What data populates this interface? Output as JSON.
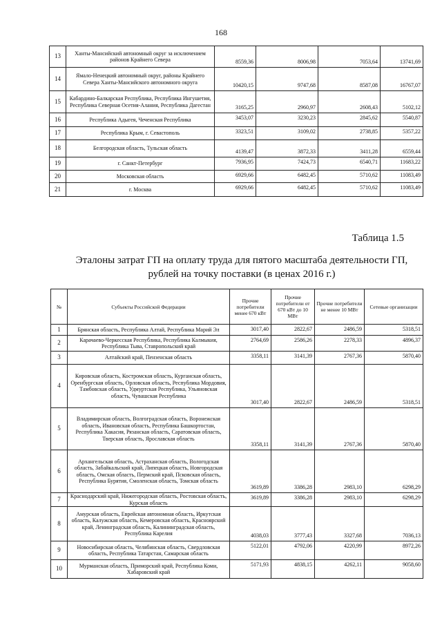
{
  "page_number": "168",
  "table1": {
    "rows": [
      {
        "n": "13",
        "name": "Ханты-Мансийский автономный округ за исключением районов Крайнего Севера",
        "v": [
          "8559,36",
          "8006,98",
          "7053,64",
          "13741,69"
        ]
      },
      {
        "n": "14",
        "name": "Ямало-Ненецкий автономный округ, районы Крайнего Севера Ханты-Мансийского автономного округа",
        "v": [
          "10420,15",
          "9747,68",
          "8587,08",
          "16767,07"
        ]
      },
      {
        "n": "15",
        "name": "Кабардино-Балкарская Республика, Республика Ингушетия, Республика Северная Осетия-Алания, Республика Дагестан",
        "v": [
          "3165,25",
          "2960,97",
          "2608,43",
          "5102,12"
        ]
      },
      {
        "n": "16",
        "name": "Республика Адыгея, Чеченская Республика",
        "v": [
          "3453,07",
          "3230,23",
          "2845,62",
          "5540,87"
        ]
      },
      {
        "n": "17",
        "name": "Республика Крым, г. Севастополь",
        "v": [
          "3323,51",
          "3109,02",
          "2738,85",
          "5357,22"
        ]
      },
      {
        "n": "18",
        "name": "Белгородская область, Тульская область",
        "v": [
          "4139,47",
          "3872,33",
          "3411,28",
          "6559,44"
        ]
      },
      {
        "n": "19",
        "name": "г. Санкт-Петербург",
        "v": [
          "7936,95",
          "7424,73",
          "6540,71",
          "11683,22"
        ]
      },
      {
        "n": "20",
        "name": "Московская область",
        "v": [
          "6929,66",
          "6482,45",
          "5710,62",
          "11083,49"
        ]
      },
      {
        "n": "21",
        "name": "г. Москва",
        "v": [
          "6929,66",
          "6482,45",
          "5710,62",
          "11083,49"
        ]
      }
    ]
  },
  "caption": "Таблица 1.5",
  "title_line1": "Эталоны затрат ГП на оплату труда для пятого масштаба деятельности ГП,",
  "title_line2": "рублей на точку поставки (в ценах 2016 г.)",
  "table2": {
    "headers": [
      "№",
      "Субъекты Российской Федерации",
      "Прочие потребители менее 670 кВт",
      "Прочие потребители от 670 кВт до 10 МВт",
      "Прочие потребители не менее 10 МВт",
      "Сетевые организации"
    ],
    "rows": [
      {
        "n": "1",
        "name": "Брянская область, Республика Алтай, Республика Марий Эл",
        "v": [
          "3017,40",
          "2822,67",
          "2486,59",
          "5318,51"
        ]
      },
      {
        "n": "2",
        "name": "Карачаево-Черкесская Республика, Республика Калмыкия, Республика Тыва, Ставропольский край",
        "v": [
          "2764,69",
          "2586,26",
          "2278,33",
          "4896,37"
        ]
      },
      {
        "n": "3",
        "name": "Алтайский край, Пензенская область",
        "v": [
          "3358,11",
          "3141,39",
          "2767,36",
          "5870,40"
        ]
      },
      {
        "n": "4",
        "name": "Кировская область, Костромская область, Курганская область, Оренбургская область, Орловская область, Республика Мордовия, Тамбовская область, Удмуртская Республика, Ульяновская область, Чувашская Республика",
        "v": [
          "3017,40",
          "2822,67",
          "2486,59",
          "5318,51"
        ]
      },
      {
        "n": "5",
        "name": "Владимирская область, Волгоградская область, Воронежская область, Ивановская область, Республика Башкортостан, Республика Хакасия, Рязанская область, Саратовская область, Тверская область, Ярославская область",
        "v": [
          "3358,11",
          "3141,39",
          "2767,36",
          "5870,40"
        ]
      },
      {
        "n": "6",
        "name": "Архангельская область, Астраханская область, Вологодская область, Забайкальский край, Липецкая область, Новгородская область, Омская область, Пермский край, Псковская область, Республика Бурятия, Смоленская область, Томская область",
        "v": [
          "3619,89",
          "3386,28",
          "2983,10",
          "6298,29"
        ]
      },
      {
        "n": "7",
        "name": "Краснодарский край, Нижегородская область, Ростовская область, Курская область",
        "v": [
          "3619,89",
          "3386,28",
          "2983,10",
          "6298,29"
        ]
      },
      {
        "n": "8",
        "name": "Амурская область, Еврейская автономная область, Иркутская область, Калужская область, Кемеровская область, Красноярский край, Ленинградская область, Калининградская область, Республика Карелия",
        "v": [
          "4038,03",
          "3777,43",
          "3327,68",
          "7036,13"
        ]
      },
      {
        "n": "9",
        "name": "Новосибирская область, Челябинская область, Свердловская область, Республика Татарстан, Самарская область",
        "v": [
          "5122,01",
          "4792,06",
          "4220,99",
          "8972,26"
        ]
      },
      {
        "n": "10",
        "name": "Мурманская область, Приморский край, Республика Коми, Хабаровский край",
        "v": [
          "5171,93",
          "4838,15",
          "4262,11",
          "9058,60"
        ]
      }
    ]
  }
}
